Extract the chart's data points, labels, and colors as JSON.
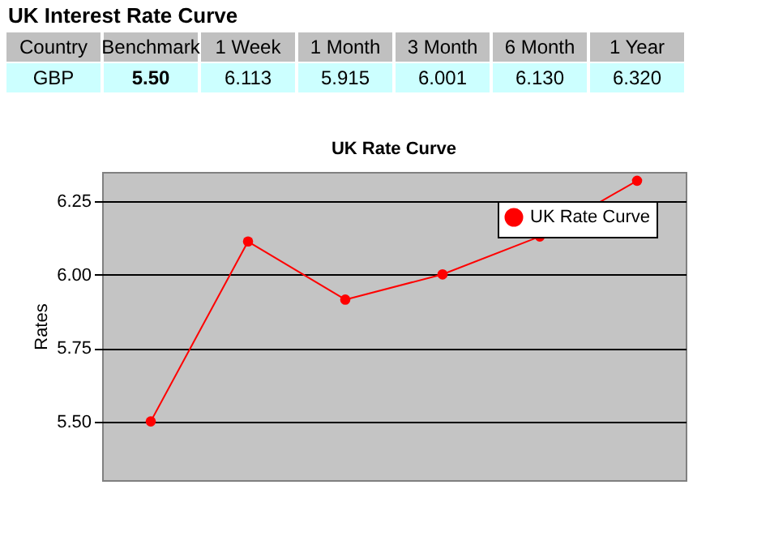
{
  "chart_data": {
    "type": "line",
    "title": "UK Interest Rate Curve",
    "subtitle": "UK Rate Curve",
    "ylabel": "Rates",
    "categories": [
      "Benchmark",
      "1 Week",
      "1 Month",
      "3 Month",
      "6 Month",
      "1 Year"
    ],
    "series": [
      {
        "name": "UK Rate Curve",
        "color": "#ff0000",
        "values": [
          5.5,
          6.113,
          5.915,
          6.001,
          6.13,
          6.32
        ],
        "value_labels": [
          "5.50",
          "6.113",
          "5.915",
          "6.001",
          "6.130",
          "6.320"
        ]
      }
    ],
    "annotations": [
      "Country",
      "GBP"
    ],
    "ylim": [
      5.3,
      6.35
    ],
    "yticks": [
      {
        "value": 5.5,
        "label": "5.50"
      },
      5.75,
      {
        "value": 6.0,
        "label": "6.00"
      },
      6.25
    ],
    "tick_labels": "y",
    "grid": "y",
    "legend": "top right",
    "marker": "circle",
    "line_style": "solid"
  }
}
